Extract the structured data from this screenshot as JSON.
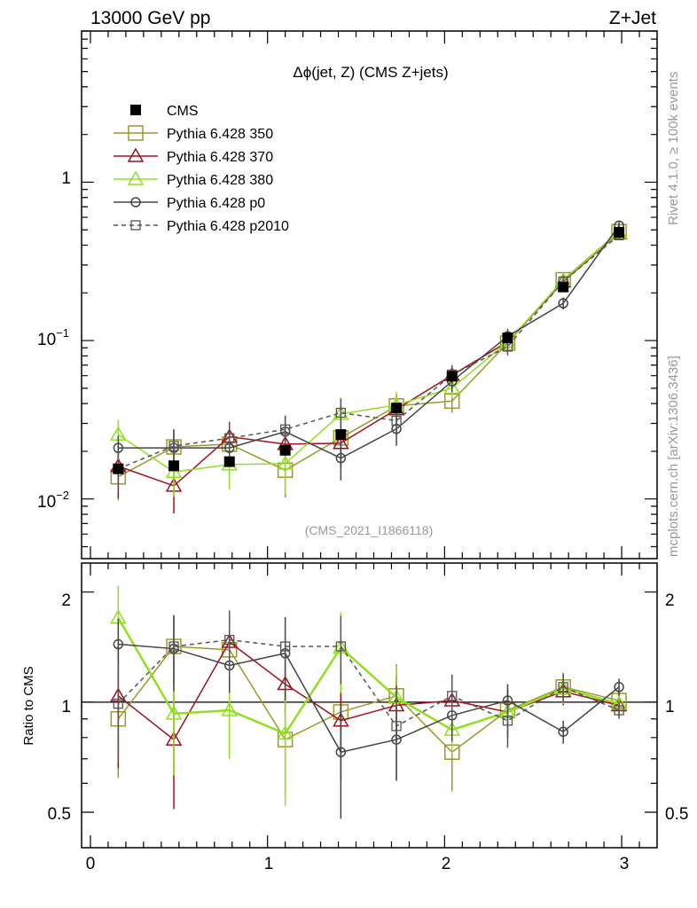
{
  "header": {
    "left": "13000 GeV pp",
    "right": "Z+Jet"
  },
  "side_text": {
    "rivet": "Rivet 4.1.0, ≥ 100k events",
    "mcplots": "mcplots.cern.ch [arXiv:1306.3436]"
  },
  "chart_data": {
    "type": "scatter",
    "title": "Δϕ(jet, Z) (CMS Z+jets)",
    "watermark": "(CMS_2021_I1866118)",
    "xlabel": "",
    "ylabel_main": "",
    "ylabel_ratio": "Ratio to CMS",
    "xlim": [
      -0.05,
      3.2
    ],
    "ylim_main": [
      0.0042,
      9.0
    ],
    "ylim_ratio": [
      0.4,
      2.4
    ],
    "x_ticks": [
      "0",
      "1",
      "2",
      "3"
    ],
    "y_ticks_main": [
      {
        "base": "1",
        "exp": ""
      },
      {
        "base": "10",
        "exp": "−1"
      },
      {
        "base": "10",
        "exp": "−2"
      }
    ],
    "y_ticks_ratio": [
      "2",
      "1",
      "0.5"
    ],
    "x": [
      0.157,
      0.471,
      0.785,
      1.1,
      1.414,
      1.728,
      2.042,
      2.356,
      2.67,
      2.985
    ],
    "data": {
      "name": "CMS",
      "values": [
        0.0155,
        0.0162,
        0.0172,
        0.0203,
        0.0255,
        0.0375,
        0.0595,
        0.104,
        0.218,
        0.482
      ]
    },
    "series": [
      {
        "name": "Pythia 6.428 350",
        "color": "#9a9a2a",
        "marker": "open-square",
        "dash": false,
        "values": [
          0.0138,
          0.0213,
          0.0222,
          0.0152,
          0.0243,
          0.0387,
          0.0415,
          0.0965,
          0.242,
          0.487
        ],
        "ratio": [
          0.9,
          1.42,
          1.39,
          0.79,
          0.94,
          1.04,
          0.73,
          0.95,
          1.1,
          1.01
        ],
        "ratio_err": [
          0.28,
          0.3,
          0.25,
          0.23,
          0.3,
          0.23,
          0.16,
          0.14,
          0.1,
          0.06
        ]
      },
      {
        "name": "Pythia 6.428 370",
        "color": "#a01020",
        "marker": "open-triangle",
        "dash": false,
        "values": [
          0.0161,
          0.0121,
          0.0247,
          0.0222,
          0.0225,
          0.0368,
          0.0605,
          0.0982,
          0.236,
          0.478
        ],
        "ratio": [
          1.04,
          0.79,
          1.46,
          1.12,
          0.89,
          0.98,
          1.01,
          0.94,
          1.07,
          0.98
        ],
        "ratio_err": [
          0.38,
          0.28,
          0.3,
          0.2,
          0.28,
          0.2,
          0.15,
          0.14,
          0.09,
          0.06
        ]
      },
      {
        "name": "Pythia 6.428 380",
        "color": "#90e020",
        "marker": "open-triangle",
        "dash": false,
        "values": [
          0.0255,
          0.0148,
          0.0165,
          0.0167,
          0.0344,
          0.0392,
          0.0502,
          0.0983,
          0.24,
          0.481
        ],
        "ratio": [
          1.7,
          0.93,
          0.95,
          0.82,
          1.41,
          1.03,
          0.84,
          0.94,
          1.09,
          0.99
        ],
        "ratio_err": [
          0.38,
          0.3,
          0.25,
          0.3,
          0.35,
          0.22,
          0.12,
          0.13,
          0.1,
          0.06
        ]
      },
      {
        "name": "Pythia 6.428 p0",
        "color": "#444444",
        "marker": "open-circle",
        "dash": false,
        "values": [
          0.021,
          0.021,
          0.021,
          0.0266,
          0.0181,
          0.0277,
          0.0553,
          0.1065,
          0.172,
          0.532
        ],
        "ratio": [
          1.44,
          1.4,
          1.26,
          1.36,
          0.73,
          0.79,
          0.92,
          1.01,
          0.83,
          1.1
        ],
        "ratio_err": [
          0.25,
          0.33,
          0.2,
          0.35,
          0.25,
          0.18,
          0.14,
          0.11,
          0.06,
          0.06
        ]
      },
      {
        "name": "Pythia 6.428 p2010",
        "color": "#555555",
        "marker": "open-square-small",
        "dash": true,
        "values": [
          0.0155,
          0.0216,
          0.0242,
          0.0275,
          0.035,
          0.0312,
          0.061,
          0.0915,
          0.236,
          0.462
        ],
        "ratio": [
          0.99,
          1.42,
          1.48,
          1.42,
          1.42,
          0.86,
          1.04,
          0.89,
          1.1,
          0.95
        ],
        "ratio_err": [
          0.3,
          0.3,
          0.3,
          0.25,
          0.3,
          0.25,
          0.15,
          0.14,
          0.1,
          0.05
        ]
      }
    ],
    "error_bars_main": [
      [
        0.004,
        0.0045,
        0.004,
        0.005,
        0.007,
        0.0075,
        0.0065,
        0.011,
        0.02,
        0.03
      ],
      [
        0.006,
        0.004,
        0.006,
        0.005,
        0.0065,
        0.008,
        0.008,
        0.012,
        0.018,
        0.03
      ],
      [
        0.006,
        0.0045,
        0.005,
        0.006,
        0.009,
        0.008,
        0.007,
        0.012,
        0.02,
        0.03
      ],
      [
        0.004,
        0.006,
        0.004,
        0.007,
        0.005,
        0.006,
        0.008,
        0.012,
        0.015,
        0.03
      ],
      [
        0.0045,
        0.006,
        0.006,
        0.0055,
        0.008,
        0.006,
        0.009,
        0.011,
        0.02,
        0.028
      ]
    ]
  }
}
